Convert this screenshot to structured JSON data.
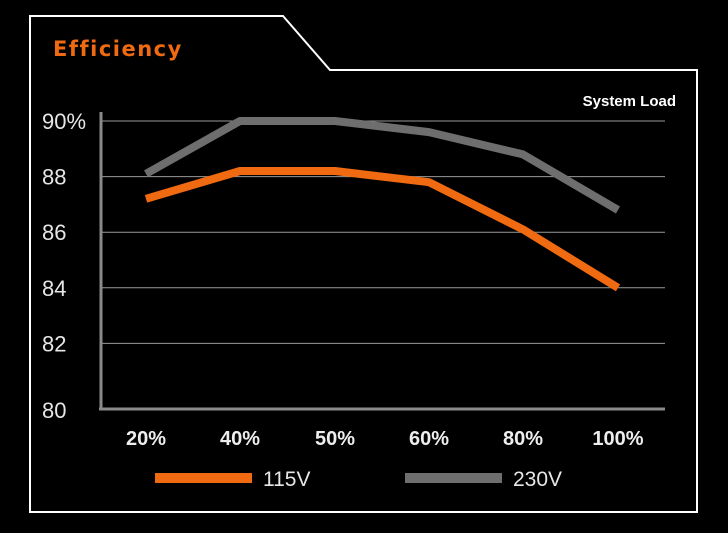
{
  "chart_data": {
    "type": "line",
    "title": "Efficiency",
    "xlabel": "System Load",
    "ylabel": "",
    "categories": [
      "20%",
      "40%",
      "50%",
      "60%",
      "80%",
      "100%"
    ],
    "y_ticks": [
      "80",
      "82",
      "84",
      "86",
      "88",
      "90%"
    ],
    "ylim": [
      80,
      90
    ],
    "grid": true,
    "legend_position": "bottom",
    "series": [
      {
        "name": "115V",
        "color": "#ef6a10",
        "values": [
          87.2,
          88.2,
          88.2,
          87.8,
          86.1,
          84.0
        ]
      },
      {
        "name": "230V",
        "color": "#6e6e6e",
        "values": [
          88.1,
          90.0,
          90.0,
          89.6,
          88.8,
          86.8
        ]
      }
    ]
  },
  "colors": {
    "background": "#000000",
    "frame": "#ffffff",
    "axis": "#8a8a8a",
    "grid": "#9a9a9a",
    "title": "#ef6a10"
  }
}
